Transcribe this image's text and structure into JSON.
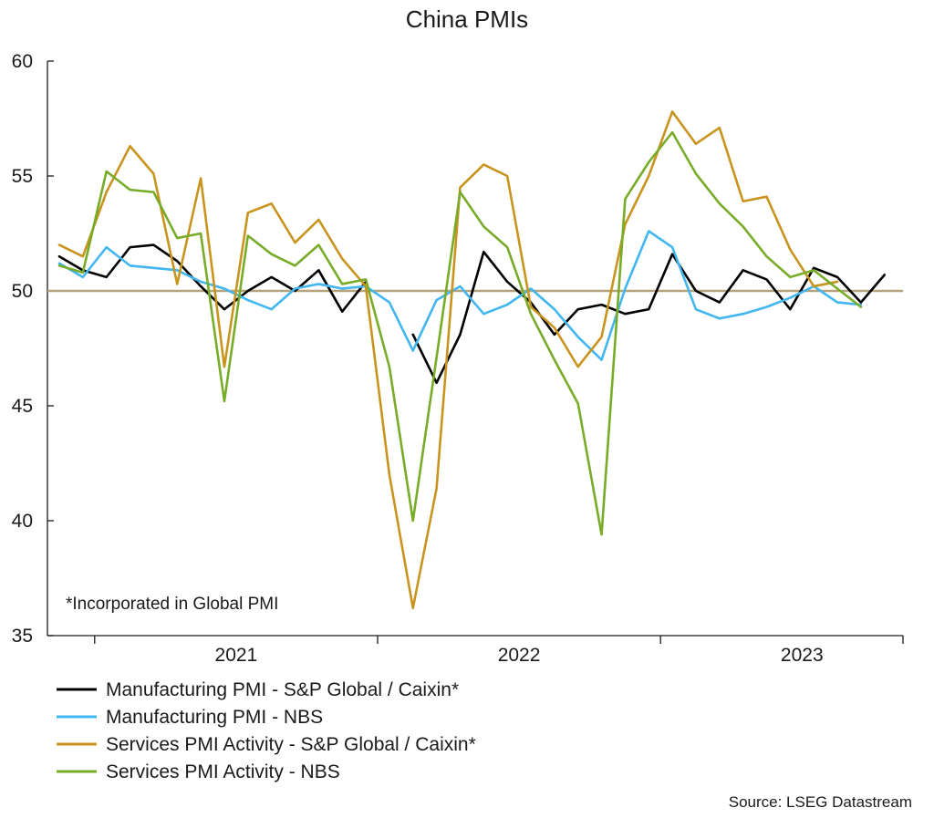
{
  "chart_data": {
    "type": "line",
    "title": "China PMIs",
    "xlabel": "",
    "ylabel": "",
    "ylim": [
      35,
      60
    ],
    "yticks": [
      35,
      40,
      45,
      50,
      55,
      60
    ],
    "x_period_labels": [
      "2021",
      "2022",
      "2023"
    ],
    "x": [
      "2020-11",
      "2020-12",
      "2021-01",
      "2021-02",
      "2021-03",
      "2021-04",
      "2021-05",
      "2021-06",
      "2021-07",
      "2021-08",
      "2021-09",
      "2021-10",
      "2021-11",
      "2021-12",
      "2022-01",
      "2022-02",
      "2022-03",
      "2022-04",
      "2022-05",
      "2022-06",
      "2022-07",
      "2022-08",
      "2022-09",
      "2022-10",
      "2022-11",
      "2022-12",
      "2023-01",
      "2023-02",
      "2023-03",
      "2023-04",
      "2023-05",
      "2023-06",
      "2023-07",
      "2023-08",
      "2023-09",
      "2023-10",
      "2023-11",
      "2023-12"
    ],
    "reference_line": 50,
    "reference_color": "#b5a27a",
    "grid": false,
    "legend_position": "bottom",
    "series": [
      {
        "name": "Manufacturing PMI - S&P Global / Caixin*",
        "color": "#000000",
        "values": [
          51.5,
          50.9,
          50.6,
          51.9,
          52.0,
          51.3,
          50.2,
          49.2,
          50.0,
          50.6,
          50.0,
          50.9,
          49.1,
          50.4,
          null,
          48.1,
          46.0,
          48.1,
          51.7,
          50.4,
          49.5,
          48.1,
          49.2,
          49.4,
          49.0,
          49.2,
          51.6,
          50.0,
          49.5,
          50.9,
          50.5,
          49.2,
          51.0,
          50.6,
          49.5,
          50.7,
          null,
          null
        ]
      },
      {
        "name": "Manufacturing PMI - NBS",
        "color": "#41b6f0",
        "values": [
          51.2,
          50.6,
          51.9,
          51.1,
          51.0,
          50.9,
          50.4,
          50.1,
          49.6,
          49.2,
          50.1,
          50.3,
          50.1,
          50.2,
          49.5,
          47.4,
          49.6,
          50.2,
          49.0,
          49.4,
          50.1,
          49.2,
          48.0,
          47.0,
          50.1,
          52.6,
          51.9,
          49.2,
          48.8,
          49.0,
          49.3,
          49.7,
          50.2,
          49.5,
          49.4,
          null,
          null,
          null
        ]
      },
      {
        "name": "Services PMI Activity - S&P Global / Caixin*",
        "color": "#c8941e",
        "values": [
          52.0,
          51.5,
          54.3,
          56.3,
          55.1,
          50.3,
          54.9,
          46.7,
          53.4,
          53.8,
          52.1,
          53.1,
          51.4,
          50.2,
          42.0,
          36.2,
          41.4,
          54.5,
          55.5,
          55.0,
          49.3,
          48.4,
          46.7,
          48.0,
          52.9,
          55.0,
          57.8,
          56.4,
          57.1,
          53.9,
          54.1,
          51.8,
          50.2,
          50.4,
          null,
          null,
          null,
          null
        ]
      },
      {
        "name": "Services PMI Activity - NBS",
        "color": "#78ac28",
        "values": [
          51.1,
          50.8,
          55.2,
          54.4,
          54.3,
          52.3,
          52.5,
          45.2,
          52.4,
          51.6,
          51.1,
          52.0,
          50.3,
          50.5,
          46.7,
          40.0,
          47.1,
          54.3,
          52.8,
          51.9,
          49.0,
          47.0,
          45.1,
          39.4,
          54.0,
          55.6,
          56.9,
          55.1,
          53.8,
          52.8,
          51.5,
          50.6,
          50.9,
          50.1,
          49.3,
          null,
          null,
          null
        ]
      }
    ],
    "note": "*Incorporated in Global PMI",
    "source": "Source: LSEG Datastream"
  }
}
